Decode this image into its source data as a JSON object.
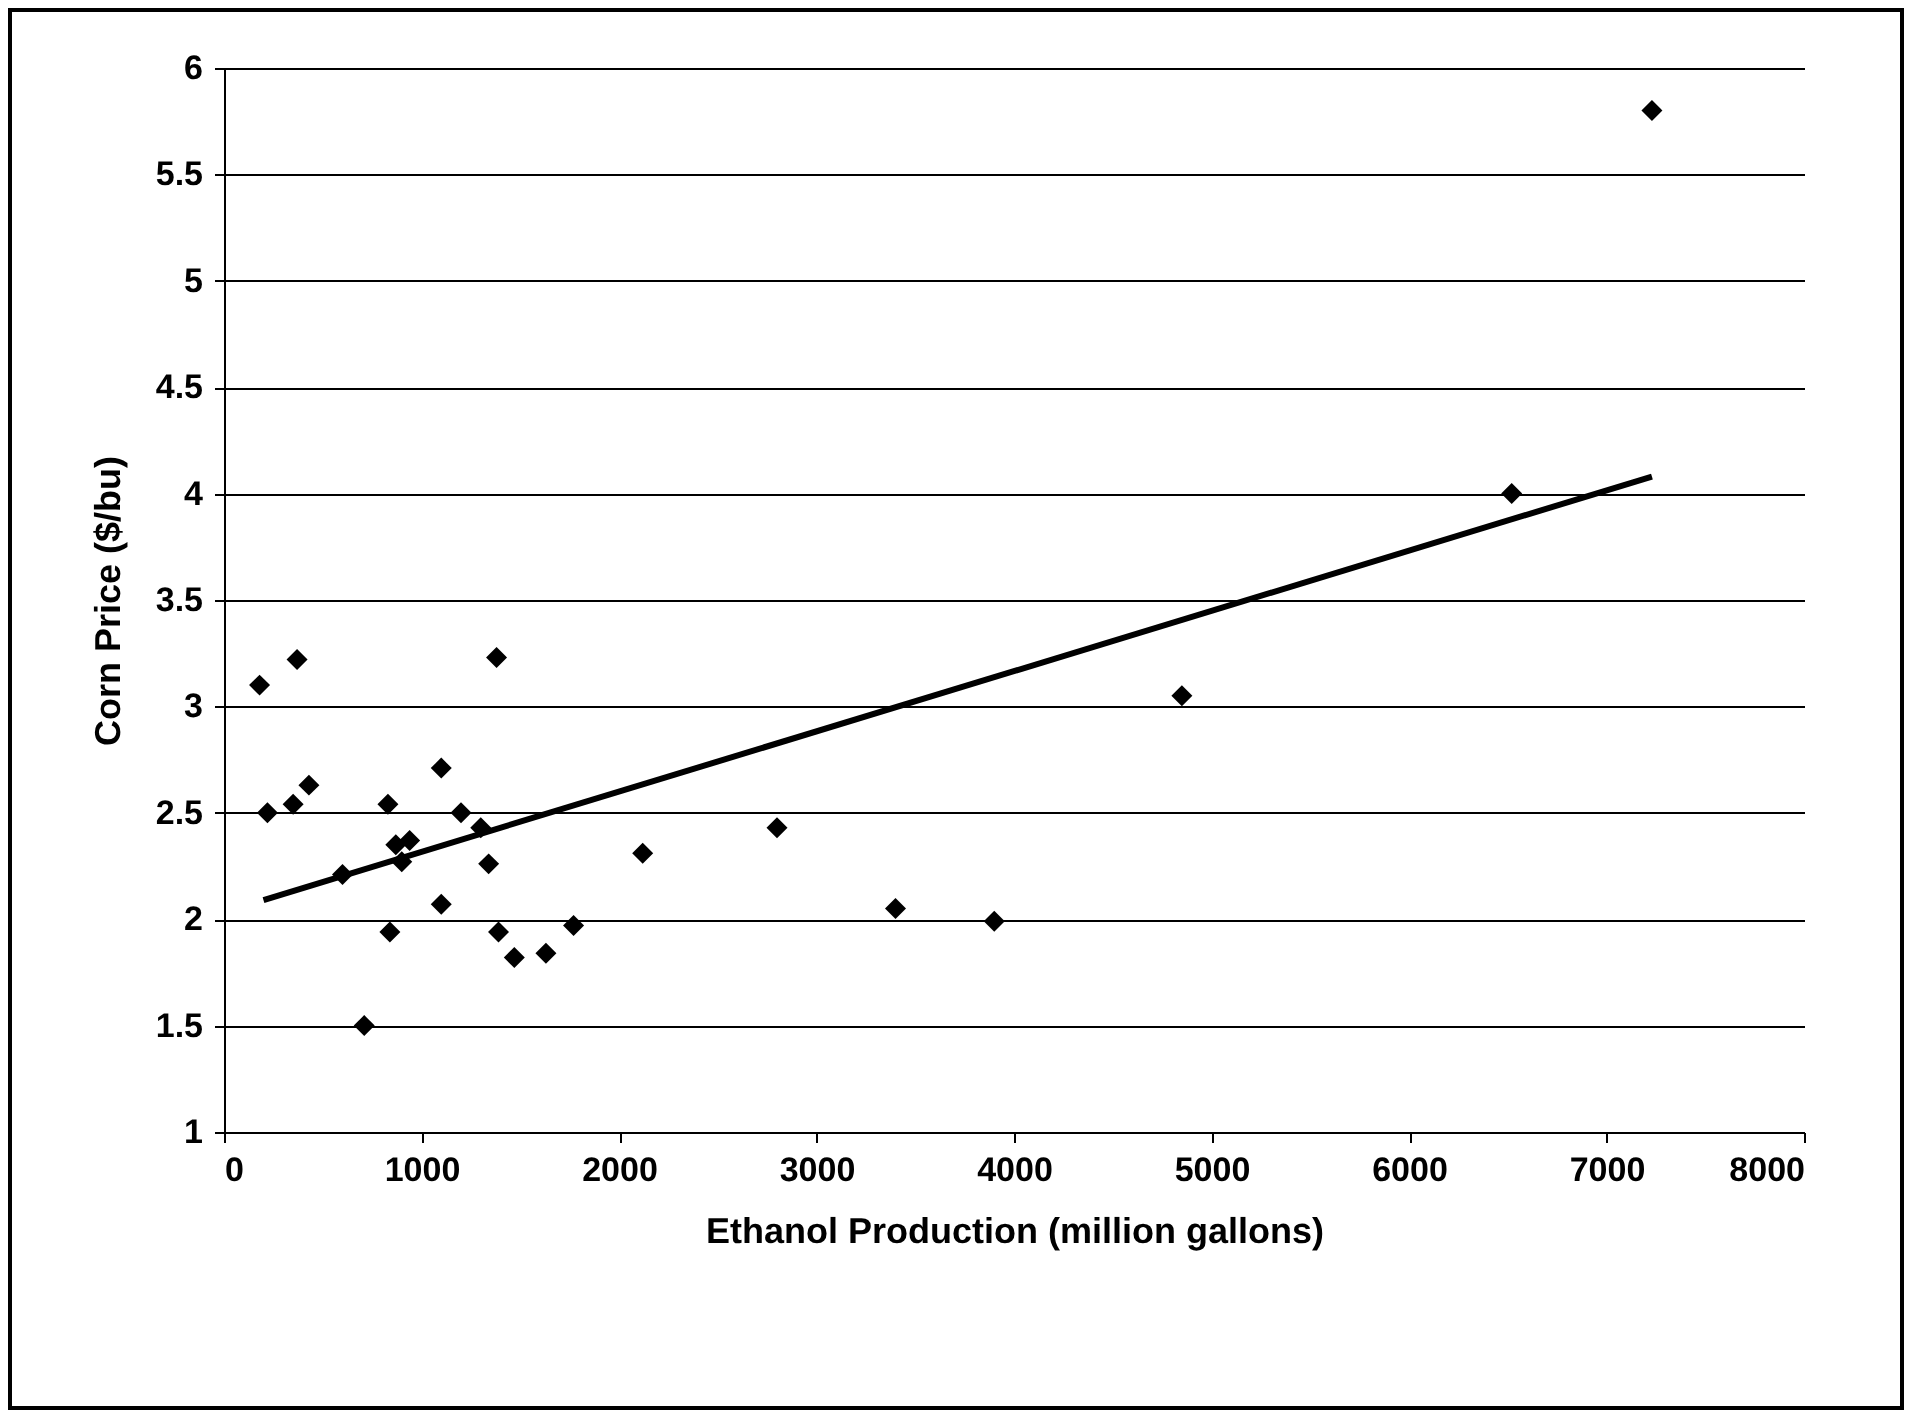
{
  "chart_data": {
    "type": "scatter",
    "xlabel": "Ethanol Production (million gallons)",
    "ylabel": "Corn Price ($/bu)",
    "xlim": [
      0,
      8000
    ],
    "xticks": [
      0,
      1000,
      2000,
      3000,
      4000,
      5000,
      6000,
      7000,
      8000
    ],
    "ylim": [
      1,
      6
    ],
    "yticks": [
      1,
      1.5,
      2,
      2.5,
      3,
      3.5,
      4,
      4.5,
      5,
      5.5,
      6
    ],
    "grid": "y",
    "legend": false,
    "marker": "diamond",
    "series": [
      {
        "color": "#000000",
        "x": [
          180,
          220,
          350,
          370,
          430,
          600,
          710,
          830,
          840,
          870,
          900,
          940,
          1100,
          1100,
          1200,
          1300,
          1340,
          1380,
          1390,
          1470,
          1630,
          1770,
          2120,
          2800,
          3400,
          3900,
          4850,
          6520,
          7230
        ],
        "values": [
          3.1,
          2.5,
          2.54,
          3.22,
          2.63,
          2.21,
          1.5,
          2.54,
          1.94,
          2.35,
          2.27,
          2.37,
          2.71,
          2.07,
          2.5,
          2.43,
          2.26,
          3.23,
          1.94,
          1.82,
          1.84,
          1.97,
          2.31,
          2.43,
          2.05,
          1.99,
          3.05,
          4.0,
          5.8
        ]
      },
      {
        "type": "line",
        "color": "#000000",
        "marker": "none",
        "x": [
          200,
          7230
        ],
        "values": [
          2.09,
          4.08
        ]
      }
    ]
  }
}
